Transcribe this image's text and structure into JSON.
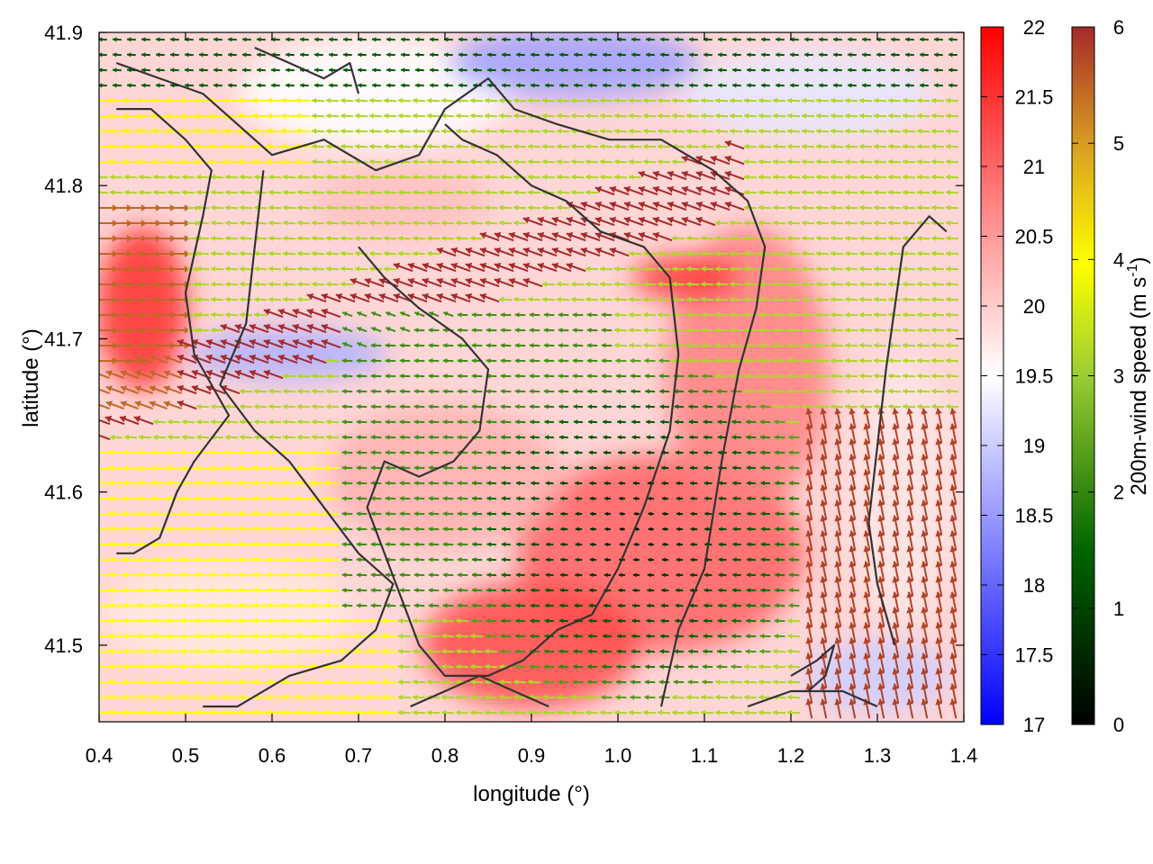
{
  "chart_data": {
    "type": "heatmap",
    "title": "",
    "xlabel": "longitude (°)",
    "ylabel": "latitude (°)",
    "xlim": [
      0.4,
      1.4
    ],
    "ylim": [
      41.45,
      41.9
    ],
    "x_ticks": [
      "0.4",
      "0.5",
      "0.6",
      "0.7",
      "0.8",
      "0.9",
      "1.0",
      "1.1",
      "1.2",
      "1.3",
      "1.4"
    ],
    "y_ticks": [
      "41.5",
      "41.6",
      "41.7",
      "41.8",
      "41.9"
    ],
    "grid": false,
    "colorbar_temperature": {
      "range": [
        17,
        22
      ],
      "ticks": [
        "17",
        "17.5",
        "18",
        "18.5",
        "19",
        "19.5",
        "20",
        "20.5",
        "21",
        "21.5",
        "22"
      ],
      "colors": [
        "#0000ff",
        "#ffffff",
        "#ff0000"
      ]
    },
    "colorbar_wind": {
      "label_main": "200m-wind speed (m s",
      "label_sup": "-1",
      "label_close": ")",
      "range": [
        0,
        6
      ],
      "ticks": [
        "0",
        "1",
        "2",
        "3",
        "4",
        "5",
        "6"
      ],
      "colors": [
        "#000000",
        "#006400",
        "#9acd32",
        "#ffff00",
        "#daa520",
        "#a52a2a"
      ]
    },
    "coastline_color": "#333333"
  }
}
